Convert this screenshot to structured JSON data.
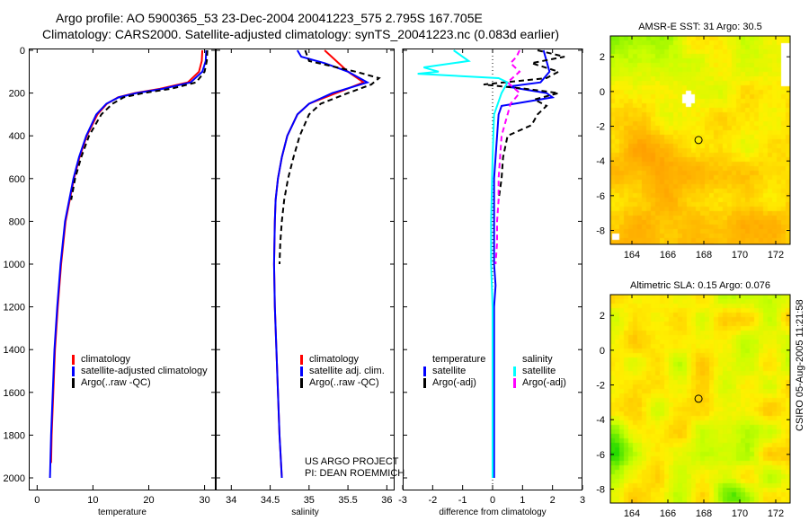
{
  "title_line1": "Argo profile: AO 5900365_53 23-Dec-2004 20041223_575 2.795S 167.705E",
  "title_line2": "Climatology: CARS2000. Satellite-adjusted climatology: synTS_20041223.nc (0.083d earlier)",
  "project": {
    "line1": "US ARGO PROJECT",
    "line2": "PI: DEAN ROEMMICH"
  },
  "stamp": "CSIRO 05-Aug-2005 11:21:58",
  "colors": {
    "climatology": "#ff0000",
    "satellite": "#0000ff",
    "argo": "#000000",
    "sal_satellite": "#00ffff",
    "sal_argo": "#ff00ff"
  },
  "chart_data": [
    {
      "type": "line",
      "xlabel": "temperature",
      "ylabel": "",
      "xlim": [
        -1.5,
        32
      ],
      "ylim": [
        2000,
        0
      ],
      "xticks": [
        0,
        10,
        20,
        30
      ],
      "yticks": [
        0,
        200,
        400,
        600,
        800,
        1000,
        1200,
        1400,
        1600,
        1800,
        2000
      ],
      "legend": [
        "climatology",
        "satellite-adjusted climatology",
        "Argo(..raw -QC)"
      ],
      "legend_position": "bottom-right",
      "series": [
        {
          "name": "climatology",
          "color": "#ff0000",
          "dash": false,
          "depth": [
            0,
            50,
            100,
            150,
            180,
            200,
            220,
            250,
            300,
            400,
            500,
            600,
            800,
            1000,
            1200,
            1400,
            1600,
            1800,
            1930
          ],
          "values": [
            29.6,
            29.5,
            29,
            27,
            22,
            17.5,
            14.5,
            12.5,
            10.8,
            8.9,
            7.6,
            6.6,
            5.1,
            4.3,
            3.7,
            3.2,
            2.9,
            2.6,
            2.5
          ]
        },
        {
          "name": "satellite-adjusted climatology",
          "color": "#0000ff",
          "dash": false,
          "depth": [
            0,
            50,
            100,
            150,
            180,
            200,
            220,
            250,
            300,
            400,
            500,
            600,
            800,
            1000,
            1200,
            1400,
            1600,
            1800,
            2000
          ],
          "values": [
            30.3,
            30.2,
            29.6,
            27.5,
            22.5,
            17.8,
            14.6,
            12.4,
            10.6,
            8.8,
            7.5,
            6.5,
            5,
            4.2,
            3.6,
            3.1,
            2.8,
            2.5,
            2.3
          ]
        },
        {
          "name": "Argo(..raw -QC)",
          "color": "#000000",
          "dash": true,
          "depth": [
            0,
            50,
            100,
            150,
            180,
            200,
            220,
            250,
            300,
            400,
            500,
            600,
            700
          ],
          "values": [
            30.5,
            30.4,
            30,
            28.5,
            24,
            19,
            15.5,
            13.5,
            11.5,
            9.3,
            7.9,
            6.8,
            6.1
          ]
        }
      ]
    },
    {
      "type": "line",
      "xlabel": "salinity",
      "ylabel": "",
      "xlim": [
        33.8,
        36.1
      ],
      "ylim": [
        2000,
        0
      ],
      "xticks": [
        34,
        34.5,
        35,
        35.5,
        36
      ],
      "yticks": [
        0,
        200,
        400,
        600,
        800,
        1000,
        1200,
        1400,
        1600,
        1800,
        2000
      ],
      "legend": [
        "climatology",
        "satellite adj. clim.",
        "Argo(..raw -QC)"
      ],
      "legend_position": "bottom-right",
      "series": [
        {
          "name": "climatology",
          "color": "#ff0000",
          "dash": false,
          "depth": [
            0,
            50,
            100,
            150,
            200,
            250,
            300,
            400,
            500,
            600,
            700,
            800,
            1000,
            1200,
            1400,
            1600,
            1800,
            2000
          ],
          "values": [
            35.2,
            35.35,
            35.5,
            35.7,
            35.35,
            35.0,
            34.85,
            34.72,
            34.65,
            34.6,
            34.57,
            34.56,
            34.55,
            34.56,
            34.58,
            34.6,
            34.62,
            34.65
          ]
        },
        {
          "name": "satellite adj. clim.",
          "color": "#0000ff",
          "dash": false,
          "depth": [
            0,
            30,
            60,
            100,
            150,
            200,
            250,
            300,
            400,
            500,
            600,
            700,
            800,
            1000,
            1200,
            1400,
            1600,
            1800,
            2000
          ],
          "values": [
            34.85,
            34.9,
            35.2,
            35.5,
            35.75,
            35.3,
            35.0,
            34.85,
            34.72,
            34.65,
            34.6,
            34.57,
            34.56,
            34.55,
            34.56,
            34.58,
            34.6,
            34.62,
            34.65
          ]
        },
        {
          "name": "Argo(..raw -QC)",
          "color": "#000000",
          "dash": true,
          "depth": [
            0,
            50,
            100,
            130,
            160,
            200,
            250,
            300,
            400,
            500,
            600,
            700,
            800,
            900,
            1000
          ],
          "values": [
            34.95,
            35.0,
            35.6,
            35.9,
            35.8,
            35.5,
            35.15,
            35.0,
            34.88,
            34.8,
            34.73,
            34.68,
            34.65,
            34.63,
            34.62
          ]
        }
      ]
    },
    {
      "type": "line",
      "xlabel": "difference from climatology",
      "ylabel": "",
      "xlim": [
        -3,
        3
      ],
      "ylim": [
        2000,
        0
      ],
      "xticks": [
        -3,
        -2,
        -1,
        0,
        1,
        2,
        3
      ],
      "yticks": [
        0,
        200,
        400,
        600,
        800,
        1000,
        1200,
        1400,
        1600,
        1800,
        2000
      ],
      "legend": [
        "temperature",
        "satellite",
        "Argo(-adj)",
        "salinity",
        "satellite",
        "Argo(-adj)"
      ],
      "legend_position": "bottom",
      "series": [
        {
          "name": "temperature satellite",
          "color": "#0000ff",
          "dash": false,
          "depth": [
            0,
            50,
            100,
            150,
            170,
            200,
            220,
            260,
            300,
            400,
            500,
            600,
            800,
            1000,
            1100,
            1200,
            1400,
            1600,
            1800,
            2000
          ],
          "values": [
            1.7,
            1.8,
            1.9,
            1.6,
            0.5,
            1.8,
            2.0,
            0.3,
            0.2,
            0.15,
            0.1,
            0.05,
            0.05,
            0.05,
            0.1,
            0.05,
            0.05,
            0.05,
            0.05,
            0.05
          ]
        },
        {
          "name": "temperature Argo(-adj)",
          "color": "#000000",
          "dash": true,
          "depth": [
            0,
            30,
            60,
            100,
            130,
            160,
            180,
            200,
            230,
            260,
            300,
            350,
            400,
            500,
            600,
            700
          ],
          "values": [
            1.5,
            2.4,
            1.3,
            2.2,
            1.8,
            -0.3,
            1.1,
            2.2,
            1.4,
            1.8,
            1.5,
            1.3,
            0.5,
            0.35,
            0.3,
            0.2
          ]
        },
        {
          "name": "salinity satellite",
          "color": "#00ffff",
          "dash": false,
          "depth": [
            0,
            50,
            80,
            100,
            110,
            130,
            150,
            200,
            300,
            500,
            800,
            1000,
            1200,
            1500,
            1800,
            2000
          ],
          "values": [
            -1.3,
            -0.8,
            -2.3,
            -1.8,
            -2.5,
            0.2,
            0.5,
            0.3,
            0.05,
            0,
            -0.05,
            -0.05,
            0,
            0,
            0,
            0
          ]
        },
        {
          "name": "salinity Argo(-adj)",
          "color": "#ff00ff",
          "dash": true,
          "depth": [
            0,
            30,
            60,
            100,
            150,
            200,
            250,
            300,
            400,
            500,
            600,
            700,
            800,
            900,
            1000
          ],
          "values": [
            0.9,
            0.8,
            0.6,
            0.9,
            0.5,
            0.9,
            0.6,
            0.5,
            0.3,
            0.25,
            0.2,
            0.2,
            0.15,
            0.15,
            0.1
          ]
        }
      ]
    }
  ],
  "maps": [
    {
      "title": "AMSR-E SST: 31 Argo: 30.5",
      "xticks": [
        164,
        166,
        168,
        170,
        172
      ],
      "yticks": [
        2,
        0,
        -2,
        -4,
        -6,
        -8
      ],
      "xlim": [
        162.8,
        172.8
      ],
      "ylim": [
        -8.8,
        3.2
      ],
      "profile_lon": 167.705,
      "profile_lat": -2.795
    },
    {
      "title": "Altimetric SLA: 0.15 Argo: 0.076",
      "xticks": [
        164,
        166,
        168,
        170,
        172
      ],
      "yticks": [
        2,
        0,
        -2,
        -4,
        -6,
        -8
      ],
      "xlim": [
        162.8,
        172.8
      ],
      "ylim": [
        -8.8,
        3.2
      ],
      "profile_lon": 167.705,
      "profile_lat": -2.795
    }
  ]
}
